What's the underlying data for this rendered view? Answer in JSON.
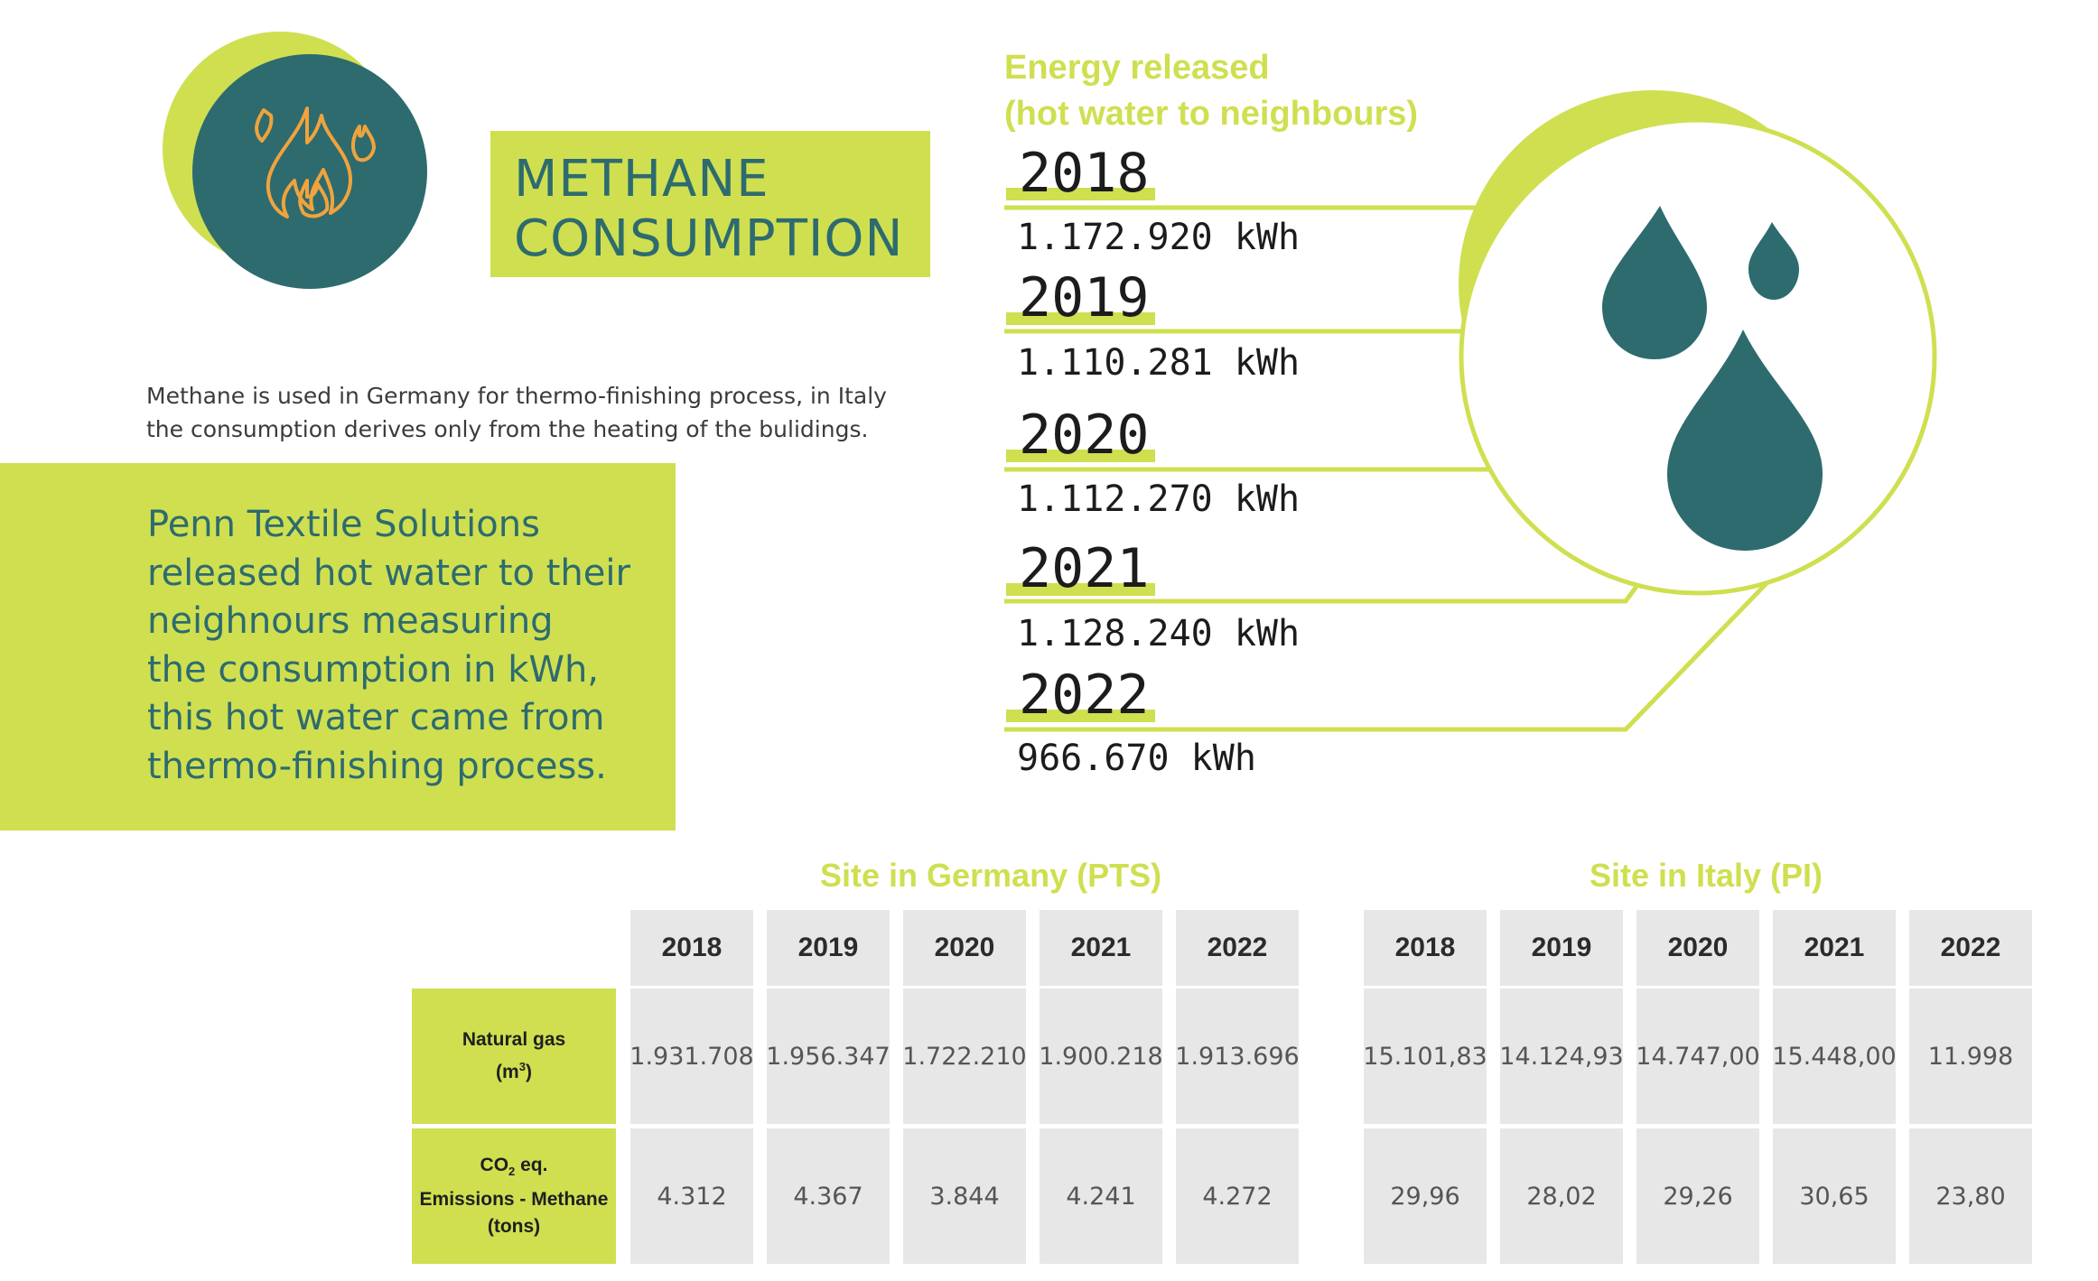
{
  "title": {
    "line1": "METHANE",
    "line2": "CONSUMPTION"
  },
  "intro": {
    "line1": "Methane is used in Germany for thermo-finishing process, in Italy",
    "line2": "the consumption derives only from the heating of the bulidings."
  },
  "info_box": {
    "lines": [
      "Penn Textile Solutions",
      "released hot water to their",
      "neighnours measuring",
      "the consumption in kWh,",
      "this hot water came from",
      "thermo-finishing process."
    ]
  },
  "energy": {
    "title_line1": "Energy released",
    "title_line2": "(hot water to neighbours)",
    "entries": [
      {
        "year": "2018",
        "value": "1.172.920 kWh"
      },
      {
        "year": "2019",
        "value": "1.110.281 kWh"
      },
      {
        "year": "2020",
        "value": "1.112.270 kWh"
      },
      {
        "year": "2021",
        "value": "1.128.240 kWh"
      },
      {
        "year": "2022",
        "value": "966.670 kWh"
      }
    ]
  },
  "tables": {
    "germany": {
      "title": "Site in Germany (PTS)",
      "years": [
        "2018",
        "2019",
        "2020",
        "2021",
        "2022"
      ],
      "natural_gas": [
        "1.931.708",
        "1.956.347",
        "1.722.210",
        "1.900.218",
        "1.913.696"
      ],
      "co2": [
        "4.312",
        "4.367",
        "3.844",
        "4.241",
        "4.272"
      ]
    },
    "italy": {
      "title": "Site in Italy (PI)",
      "years": [
        "2018",
        "2019",
        "2020",
        "2021",
        "2022"
      ],
      "natural_gas": [
        "15.101,83",
        "14.124,93",
        "14.747,00",
        "15.448,00",
        "11.998"
      ],
      "co2": [
        "29,96",
        "28,02",
        "29,26",
        "30,65",
        "23,80"
      ]
    },
    "row_labels": {
      "natural_gas_line1": "Natural gas",
      "natural_gas_unit_open": "(m",
      "natural_gas_unit_sup": "3",
      "natural_gas_unit_close": ")",
      "co2_prefix": "CO",
      "co2_sub": "2",
      "co2_suffix": " eq.",
      "co2_line2": "Emissions - Methane",
      "co2_line3": "(tons)"
    }
  },
  "colors": {
    "lime": "#cfdf50",
    "teal": "#2d6b6f",
    "flame": "#f0a33c",
    "cell": "#e6e7e6"
  },
  "icons": [
    "flame-icon",
    "water-drops-icon"
  ]
}
